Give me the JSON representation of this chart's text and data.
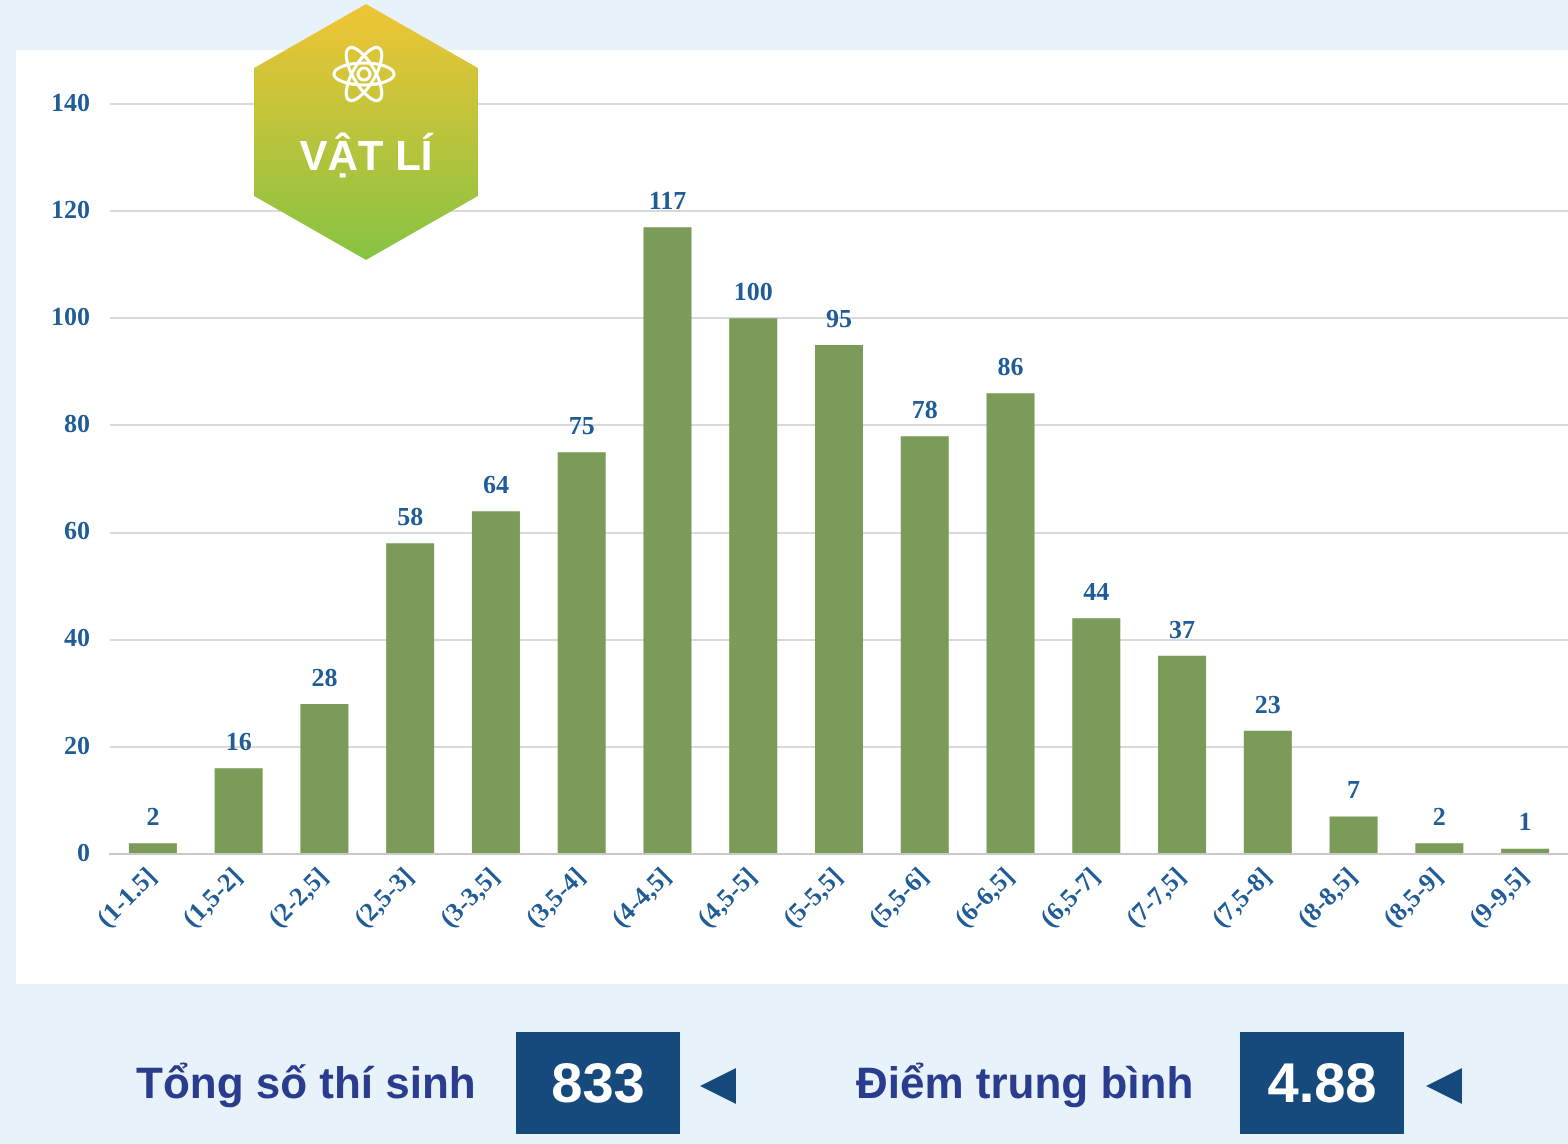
{
  "chart_data": {
    "type": "bar",
    "title": "VẬT LÍ",
    "categories": [
      "(1-1.5]",
      "(1,5-2]",
      "(2-2,5]",
      "(2,5-3]",
      "(3-3,5]",
      "(3,5-4]",
      "(4-4,5]",
      "(4,5-5]",
      "(5-5,5]",
      "(5,5-6]",
      "(6-6,5]",
      "(6,5-7]",
      "(7-7,5]",
      "(7,5-8]",
      "(8-8,5]",
      "(8,5-9]",
      "(9-9,5]"
    ],
    "values": [
      2,
      16,
      28,
      58,
      64,
      75,
      117,
      100,
      95,
      78,
      86,
      44,
      37,
      23,
      7,
      2,
      1
    ],
    "color": "#7a9c58",
    "ylim": [
      0,
      140
    ],
    "yticks": [
      0,
      20,
      40,
      60,
      80,
      100,
      120,
      140
    ],
    "grid": "y",
    "data_labels": true,
    "annotations": [
      "Tổng số thí sinh",
      "833",
      "Điểm trung bình",
      "4.88"
    ]
  }
}
